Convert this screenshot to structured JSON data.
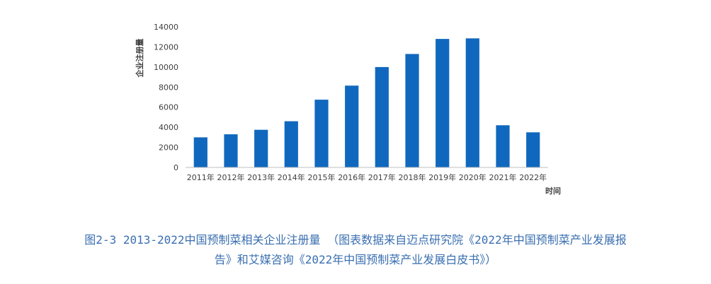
{
  "chart_data": {
    "type": "bar",
    "categories": [
      "2011年",
      "2012年",
      "2013年",
      "2014年",
      "2015年",
      "2016年",
      "2017年",
      "2018年",
      "2019年",
      "2020年",
      "2021年",
      "2022年"
    ],
    "values": [
      3000,
      3300,
      3750,
      4600,
      6750,
      8150,
      10000,
      11300,
      12800,
      12850,
      4200,
      3500
    ],
    "ylim": [
      0,
      14000
    ],
    "yticks": [
      "0",
      "2000",
      "4000",
      "6000",
      "8000",
      "10000",
      "12000",
      "14000"
    ],
    "ylabel": "企业注册量",
    "xlabel": "时间",
    "grid": false,
    "bar_color": "#1068be"
  },
  "caption": {
    "line1": "图2-3 2013-2022中国预制菜相关企业注册量 （图表数据来自迈点研究院《2022年中国预制菜产业发展报",
    "line2": "告》和艾媒咨询《2022年中国预制菜产业发展白皮书》）"
  }
}
